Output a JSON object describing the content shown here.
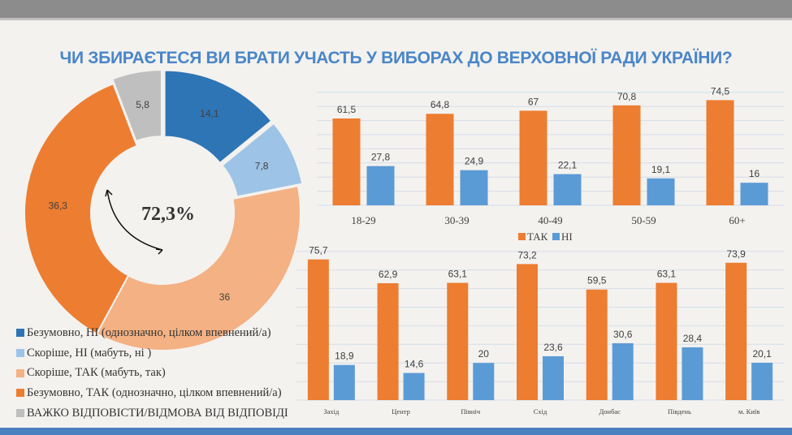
{
  "title": "ЧИ ЗБИРАЄТЕСЯ ВИ БРАТИ УЧАСТЬ У  ВИБОРАХ ДО ВЕРХОВНОЇ РАДИ УКРАЇНИ?",
  "chart_data": [
    {
      "type": "pie",
      "donut": true,
      "center_label": "72,3%",
      "slices": [
        {
          "name": "Безумовно, НІ (однозначно, цілком впевнений/а)",
          "value": 14.1,
          "label": "14,1",
          "color": "#2e75b6"
        },
        {
          "name": "Скоріше, НІ (мабуть, ні )",
          "value": 7.8,
          "label": "7,8",
          "color": "#9dc3e6"
        },
        {
          "name": "Скоріше, ТАК (мабуть, так)",
          "value": 36,
          "label": "36",
          "color": "#f4b183"
        },
        {
          "name": "Безумовно, ТАК (однозначно, цілком впевнений/а)",
          "value": 36.3,
          "label": "36,3",
          "color": "#ed7d31"
        },
        {
          "name": "ВАЖКО ВІДПОВІСТИ/ВІДМОВА ВІД ВІДПОВІДІ",
          "value": 5.8,
          "label": "5,8",
          "color": "#bfbfbf"
        }
      ],
      "legend": "bottom-left"
    },
    {
      "type": "bar",
      "categories": [
        "18-29",
        "30-39",
        "40-49",
        "50-59",
        "60+"
      ],
      "ylim": [
        0,
        80
      ],
      "grid": true,
      "legend": "bottom",
      "series": [
        {
          "name": "ТАК",
          "color": "#ed7d31",
          "values": [
            61.5,
            64.8,
            67,
            70.8,
            74.5
          ],
          "labels": [
            "61,5",
            "64,8",
            "67",
            "70,8",
            "74,5"
          ]
        },
        {
          "name": "НІ",
          "color": "#5b9bd5",
          "values": [
            27.8,
            24.9,
            22.1,
            19.1,
            16
          ],
          "labels": [
            "27,8",
            "24,9",
            "22,1",
            "19,1",
            "16"
          ]
        }
      ]
    },
    {
      "type": "bar",
      "categories": [
        "Захід",
        "Центр",
        "Північ",
        "Схід",
        "Донбас",
        "Південь",
        "м. Київ"
      ],
      "ylim": [
        0,
        80
      ],
      "grid": true,
      "series": [
        {
          "color": "#ed7d31",
          "values": [
            75.7,
            62.9,
            63.1,
            73.2,
            59.5,
            63.1,
            73.9
          ],
          "labels": [
            "75,7",
            "62,9",
            "63,1",
            "73,2",
            "59,5",
            "63,1",
            "73,9"
          ]
        },
        {
          "color": "#5b9bd5",
          "values": [
            18.9,
            14.6,
            20,
            23.6,
            30.6,
            28.4,
            20.1
          ],
          "labels": [
            "18,9",
            "14,6",
            "20",
            "23,6",
            "30,6",
            "28,4",
            "20,1"
          ]
        }
      ]
    }
  ]
}
